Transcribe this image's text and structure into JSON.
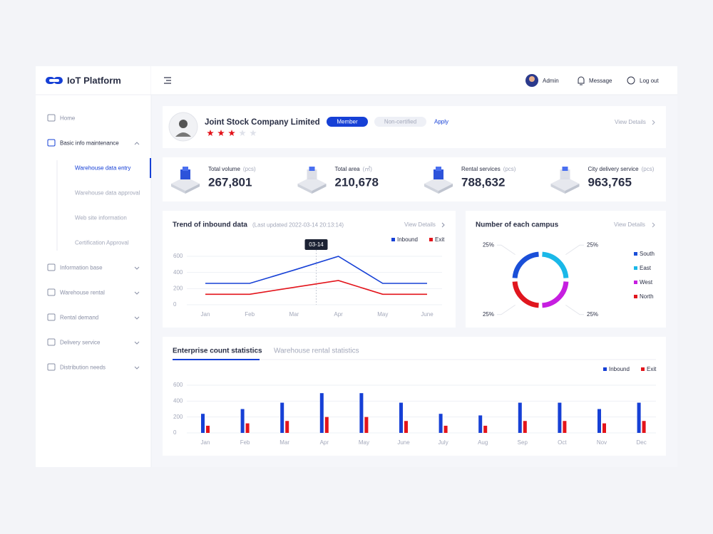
{
  "sidebar": {
    "logo": "IoT Platform",
    "menu": [
      {
        "label": "Home"
      },
      {
        "label": "Basic info maintenance",
        "children": [
          "Warehouse data entry",
          "Warehouse data approval",
          "Web site information",
          "Certification Approval"
        ]
      },
      {
        "label": "Information base"
      },
      {
        "label": "Warehouse rental"
      },
      {
        "label": "Rental demand"
      },
      {
        "label": "Delivery service"
      },
      {
        "label": "Distribution needs"
      }
    ]
  },
  "header": {
    "user": "Admin",
    "message": "Message",
    "logout": "Log out"
  },
  "profile": {
    "company": "Joint Stock Company Limited",
    "badge": "Member",
    "status": "Non-certified",
    "action": "Apply",
    "link": "View Details",
    "rating": 3,
    "rating_max": 5
  },
  "stats": [
    {
      "label": "Total volume",
      "unit": "(pcs)",
      "value": "267,801"
    },
    {
      "label": "Total area",
      "unit": "(㎡)",
      "value": "210,678"
    },
    {
      "label": "Rental services",
      "unit": "(pcs)",
      "value": "788,632"
    },
    {
      "label": "City delivery service",
      "unit": "(pcs)",
      "value": "963,765"
    }
  ],
  "chart_data": [
    {
      "type": "line",
      "title": "Trend of inbound data",
      "subtitle": "(Last updated 2022-03-14 20:13:14)",
      "link": "View Details",
      "annotation": "03-14",
      "categories": [
        "Jan",
        "Feb",
        "Mar",
        "Apr",
        "May",
        "June"
      ],
      "series": [
        {
          "name": "Inbound",
          "color": "#1640d6",
          "values": [
            265,
            265,
            430,
            600,
            265,
            265
          ]
        },
        {
          "name": "Exit",
          "color": "#e3141b",
          "values": [
            130,
            130,
            215,
            300,
            130,
            130
          ]
        }
      ],
      "ylim": [
        0,
        600
      ],
      "yticks": [
        0,
        200,
        400,
        600
      ],
      "grid": true
    },
    {
      "type": "pie",
      "title": "Number of each campus",
      "link": "View Details",
      "categories": [
        "South",
        "East",
        "West",
        "North"
      ],
      "values": [
        25,
        25,
        25,
        25
      ],
      "value_labels": [
        "25%",
        "25%",
        "25%",
        "25%"
      ],
      "colors": [
        "#1a4fd8",
        "#1ab8e8",
        "#c61ee0",
        "#e0161e"
      ]
    },
    {
      "type": "bar",
      "tabs": [
        "Enterprise count statistics",
        "Warehouse rental statistics"
      ],
      "categories": [
        "Jan",
        "Feb",
        "Mar",
        "Apr",
        "May",
        "June",
        "July",
        "Aug",
        "Sep",
        "Oct",
        "Nov",
        "Dec"
      ],
      "series": [
        {
          "name": "Inbound",
          "color": "#1640d6",
          "values": [
            240,
            300,
            380,
            500,
            500,
            380,
            240,
            220,
            380,
            380,
            300,
            380
          ]
        },
        {
          "name": "Exit",
          "color": "#e3141b",
          "values": [
            90,
            120,
            150,
            200,
            200,
            150,
            90,
            90,
            150,
            150,
            120,
            150
          ]
        }
      ],
      "ylim": [
        0,
        600
      ],
      "yticks": [
        0,
        200,
        400,
        600
      ],
      "grid": true
    }
  ]
}
